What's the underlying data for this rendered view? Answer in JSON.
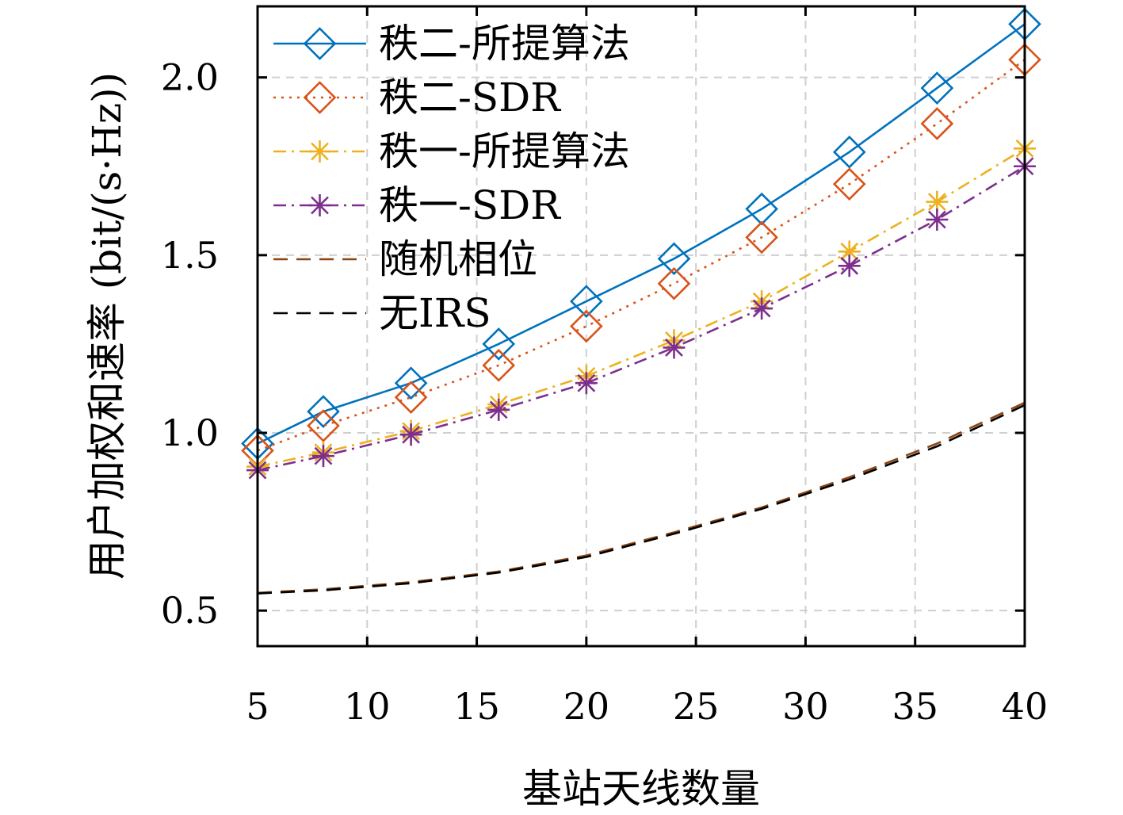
{
  "chart_data": {
    "type": "line",
    "xlabel": "基站天线数量",
    "ylabel": "用户加权和速率 (bit/(s·Hz))",
    "xlim": [
      5,
      40
    ],
    "ylim": [
      0.4,
      2.2
    ],
    "xticks": [
      5,
      10,
      15,
      20,
      25,
      30,
      35,
      40
    ],
    "xtick_labels": [
      "5",
      "10",
      "15",
      "20",
      "25",
      "30",
      "35",
      "40"
    ],
    "yticks": [
      0.5,
      1.0,
      1.5,
      2.0
    ],
    "ytick_labels": [
      "0.5",
      "1.0",
      "1.5",
      "2.0"
    ],
    "grid": true,
    "legend_position": "top-left",
    "x": [
      5,
      8,
      12,
      16,
      20,
      24,
      28,
      32,
      36,
      40
    ],
    "series": [
      {
        "name": "秩二-所提算法",
        "color": "#0072BD",
        "line": "solid",
        "marker": "diamond",
        "values": [
          0.97,
          1.06,
          1.14,
          1.25,
          1.37,
          1.49,
          1.63,
          1.79,
          1.97,
          2.15
        ]
      },
      {
        "name": "秩二-SDR",
        "color": "#D95319",
        "line": "dotted",
        "marker": "diamond",
        "values": [
          0.95,
          1.02,
          1.1,
          1.19,
          1.3,
          1.42,
          1.55,
          1.7,
          1.87,
          2.05
        ]
      },
      {
        "name": "秩一-所提算法",
        "color": "#EDB120",
        "line": "dashdot",
        "marker": "asterisk",
        "values": [
          0.905,
          0.945,
          1.005,
          1.08,
          1.16,
          1.26,
          1.37,
          1.51,
          1.65,
          1.8
        ]
      },
      {
        "name": "秩一-SDR",
        "color": "#7E2F8E",
        "line": "dashdot",
        "marker": "asterisk",
        "values": [
          0.895,
          0.935,
          0.995,
          1.065,
          1.14,
          1.24,
          1.35,
          1.47,
          1.6,
          1.75
        ]
      },
      {
        "name": "随机相位",
        "color": "#8B4513",
        "line": "dashed",
        "marker": "none",
        "values": [
          0.55,
          0.56,
          0.58,
          0.61,
          0.655,
          0.72,
          0.79,
          0.875,
          0.97,
          1.085
        ]
      },
      {
        "name": "无IRS",
        "color": "#000000",
        "line": "dashed",
        "marker": "none",
        "values": [
          0.548,
          0.557,
          0.577,
          0.607,
          0.651,
          0.716,
          0.786,
          0.869,
          0.962,
          1.078
        ]
      }
    ]
  }
}
